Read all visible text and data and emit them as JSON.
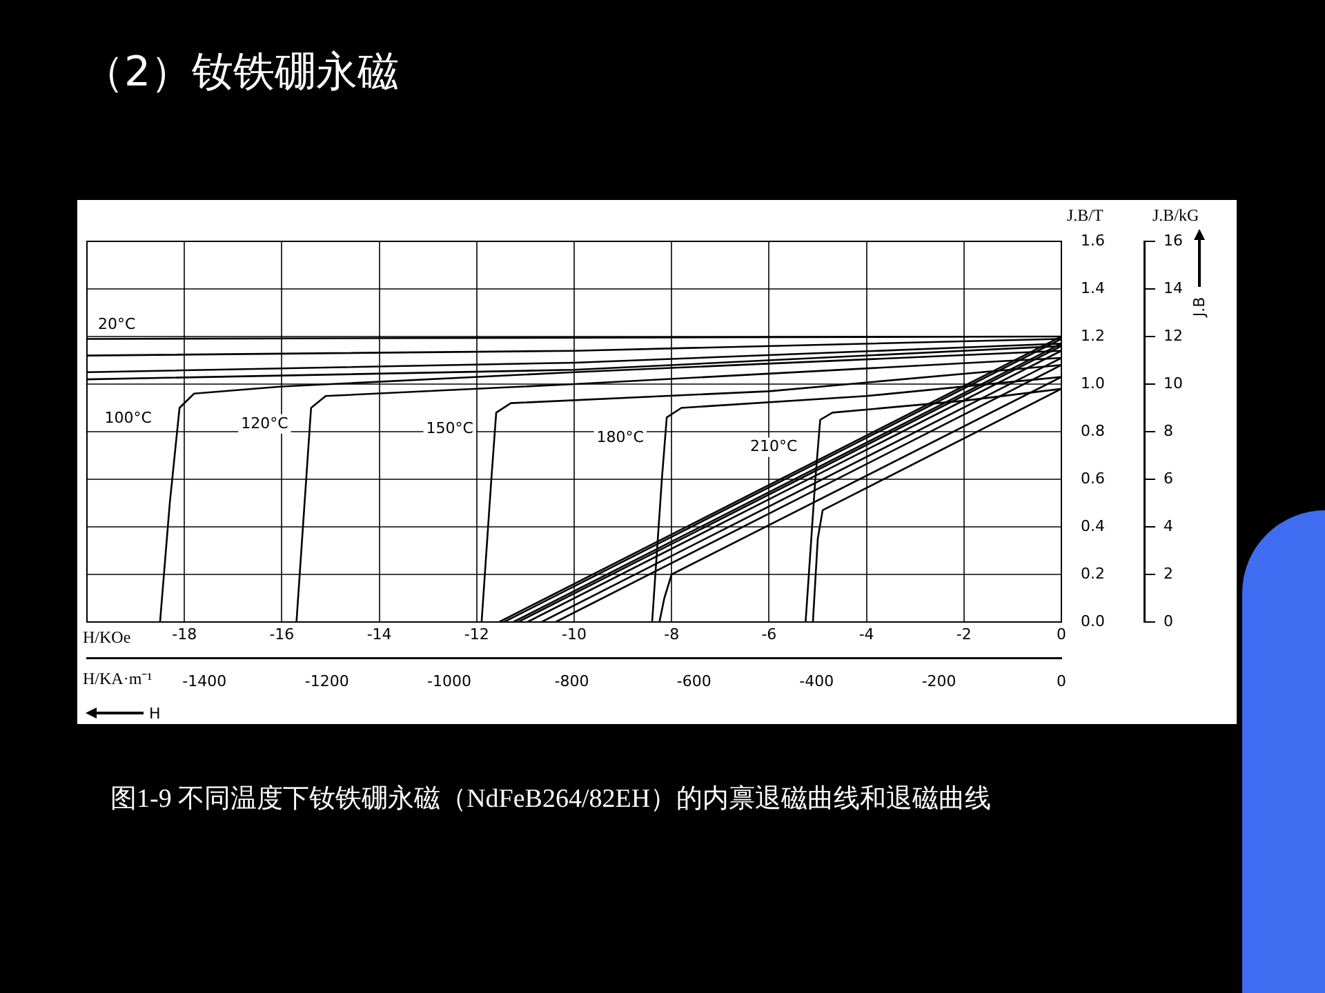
{
  "chart_data": {
    "type": "line",
    "title": "（2）钕铁硼永磁",
    "xlabel": "H/KOe",
    "x2label": "H/KA·m⁻¹",
    "ylabel": "J.B/T",
    "y2label": "J.B/kG",
    "xlim": [
      -20,
      0
    ],
    "xticks": [
      -18,
      -16,
      -14,
      -12,
      -10,
      -8,
      -6,
      -4,
      -2,
      0
    ],
    "x2lim": [
      -1592,
      0
    ],
    "x2ticks": [
      -1400,
      -1200,
      -1000,
      -800,
      -600,
      -400,
      -200,
      0
    ],
    "ylim": [
      0,
      1.6
    ],
    "yticks": [
      {
        "value": 0,
        "label": "0.0"
      },
      {
        "value": 0.2,
        "label": "0.2"
      },
      {
        "value": 0.4,
        "label": "0.4"
      },
      {
        "value": 0.6,
        "label": "0.6"
      },
      {
        "value": 0.8,
        "label": "0.8"
      },
      {
        "value": 1,
        "label": "1.0"
      },
      {
        "value": 1.2,
        "label": "1.2"
      },
      {
        "value": 1.4,
        "label": "1.4"
      },
      {
        "value": 1.6,
        "label": "1.6"
      }
    ],
    "y2lim": [
      0,
      16
    ],
    "y2ticks": [
      0,
      2,
      4,
      6,
      8,
      10,
      12,
      14,
      16
    ],
    "grid": true,
    "legend": false,
    "marker": "none",
    "line_style": "solid",
    "series": [
      {
        "name": "20°C",
        "color": "#000000",
        "x": [
          -20,
          0
        ],
        "values": [
          1.19,
          1.2
        ]
      },
      {
        "color": "#000000",
        "x": [
          -20,
          -10,
          0
        ],
        "values": [
          1.12,
          1.14,
          1.19
        ]
      },
      {
        "color": "#000000",
        "x": [
          -20,
          -10,
          0
        ],
        "values": [
          1.05,
          1.09,
          1.17
        ]
      },
      {
        "color": "#000000",
        "x": [
          -20,
          -10,
          0
        ],
        "values": [
          1.02,
          1.06,
          1.16
        ]
      },
      {
        "name": "100°C",
        "color": "#000000",
        "x": [
          -18.5,
          -18.3,
          -18.1,
          -17.8,
          -16,
          -10,
          0
        ],
        "values": [
          0,
          0.5,
          0.9,
          0.96,
          0.99,
          1.05,
          1.14
        ]
      },
      {
        "name": "120°C",
        "color": "#000000",
        "x": [
          -15.7,
          -15.5,
          -15.4,
          -15.1,
          -10,
          0
        ],
        "values": [
          0,
          0.6,
          0.9,
          0.95,
          1.0,
          1.11
        ]
      },
      {
        "name": "150°C",
        "color": "#000000",
        "x": [
          -11.9,
          -11.7,
          -11.6,
          -11.3,
          -6,
          0
        ],
        "values": [
          0,
          0.6,
          0.88,
          0.92,
          0.97,
          1.08
        ]
      },
      {
        "name": "180°C",
        "color": "#000000",
        "x": [
          -8.4,
          -8.2,
          -8.1,
          -7.8,
          -4,
          0
        ],
        "values": [
          0,
          0.6,
          0.86,
          0.9,
          0.95,
          1.03
        ]
      },
      {
        "name": "210°C",
        "color": "#000000",
        "x": [
          -5.25,
          -5.05,
          -4.95,
          -4.7,
          -2,
          0
        ],
        "values": [
          0,
          0.6,
          0.85,
          0.88,
          0.93,
          0.98
        ]
      },
      {
        "color": "#000000",
        "x": [
          -11.54,
          0
        ],
        "values": [
          0,
          1.2
        ]
      },
      {
        "color": "#000000",
        "x": [
          -11.44,
          0
        ],
        "values": [
          0,
          1.19
        ]
      },
      {
        "color": "#000000",
        "x": [
          -11.25,
          0
        ],
        "values": [
          0,
          1.17
        ]
      },
      {
        "color": "#000000",
        "x": [
          -11.15,
          0
        ],
        "values": [
          0,
          1.16
        ]
      },
      {
        "color": "#000000",
        "x": [
          -10.96,
          0
        ],
        "values": [
          0,
          1.14
        ]
      },
      {
        "color": "#000000",
        "x": [
          -10.67,
          0
        ],
        "values": [
          0,
          1.11
        ]
      },
      {
        "color": "#000000",
        "x": [
          -10.38,
          0
        ],
        "values": [
          0,
          1.08
        ]
      },
      {
        "color": "#000000",
        "x": [
          -8.25,
          -8.15,
          -8.0,
          0
        ],
        "values": [
          0,
          0.1,
          0.2,
          1.03
        ]
      },
      {
        "color": "#000000",
        "x": [
          -5.1,
          -5.0,
          -4.9,
          0
        ],
        "values": [
          0,
          0.35,
          0.47,
          0.98
        ]
      }
    ],
    "annotations": [
      "图1-9 不同温度下钕铁硼永磁（NdFeB264/82EH）的内禀退磁曲线和退磁曲线",
      "H",
      "J.B"
    ]
  }
}
